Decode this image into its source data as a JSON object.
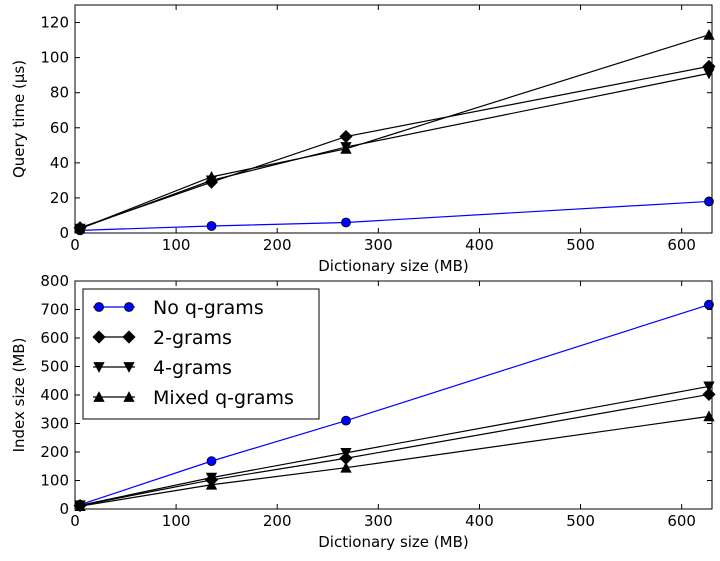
{
  "chart_data": [
    {
      "type": "line",
      "title": "",
      "xlabel": "Dictionary size (MB)",
      "ylabel": "Query time (μs)",
      "xlim": [
        0,
        630
      ],
      "ylim": [
        0,
        130
      ],
      "xticks": [
        0,
        100,
        200,
        300,
        400,
        500,
        600
      ],
      "yticks": [
        0,
        20,
        40,
        60,
        80,
        100,
        120
      ],
      "x": [
        5,
        135,
        268,
        627
      ],
      "grid": false,
      "legend": "none",
      "series": [
        {
          "name": "No q-grams",
          "marker": "circle",
          "color": "#0000ff",
          "values": [
            1.5,
            4,
            6,
            18
          ]
        },
        {
          "name": "2-grams",
          "marker": "diamond",
          "color": "#000000",
          "values": [
            3,
            29,
            55,
            95
          ]
        },
        {
          "name": "4-grams",
          "marker": "triangle-down",
          "color": "#000000",
          "values": [
            2.5,
            30,
            49,
            91
          ]
        },
        {
          "name": "Mixed q-grams",
          "marker": "triangle-up",
          "color": "#000000",
          "values": [
            2.5,
            32,
            48,
            113
          ]
        }
      ]
    },
    {
      "type": "line",
      "title": "",
      "xlabel": "Dictionary size (MB)",
      "ylabel": "Index size (MB)",
      "xlim": [
        0,
        630
      ],
      "ylim": [
        0,
        800
      ],
      "xticks": [
        0,
        100,
        200,
        300,
        400,
        500,
        600
      ],
      "yticks": [
        0,
        100,
        200,
        300,
        400,
        500,
        600,
        700,
        800
      ],
      "x": [
        5,
        135,
        268,
        627
      ],
      "grid": false,
      "legend": "top-left",
      "series": [
        {
          "name": "No q-grams",
          "marker": "circle",
          "color": "#0000ff",
          "values": [
            15,
            168,
            310,
            717
          ]
        },
        {
          "name": "2-grams",
          "marker": "diamond",
          "color": "#000000",
          "values": [
            12,
            102,
            178,
            402
          ]
        },
        {
          "name": "4-grams",
          "marker": "triangle-down",
          "color": "#000000",
          "values": [
            13,
            110,
            197,
            430
          ]
        },
        {
          "name": "Mixed q-grams",
          "marker": "triangle-up",
          "color": "#000000",
          "values": [
            10,
            85,
            145,
            325
          ]
        }
      ]
    }
  ]
}
